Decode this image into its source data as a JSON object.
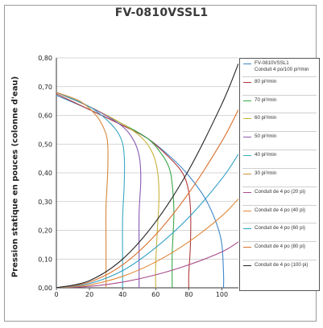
{
  "chart_data": {
    "type": "line",
    "title": "FV-0810VSSL1",
    "ylabel": "Pression statique en pouces (colonne d'eau)",
    "xlabel": "",
    "xlim": [
      0,
      110
    ],
    "ylim": [
      0,
      0.8
    ],
    "x_ticks": [
      "0",
      "20",
      "40",
      "60",
      "80",
      "100"
    ],
    "y_ticks": [
      "0,00",
      "0,10",
      "0,20",
      "0,30",
      "0,40",
      "0,50",
      "0,60",
      "0,70",
      "0,80"
    ],
    "grid": "horizontal",
    "legend_position": "right",
    "series": [
      {
        "name": "FV-0810VSSL1",
        "name_line2": "Conduit 4 po/100 pi³/min",
        "color": "#3f87c9",
        "points": [
          [
            0,
            0.67
          ],
          [
            20,
            0.62
          ],
          [
            40,
            0.565
          ],
          [
            55,
            0.52
          ],
          [
            70,
            0.45
          ],
          [
            80,
            0.39
          ],
          [
            90,
            0.31
          ],
          [
            97,
            0.22
          ],
          [
            100,
            0.15
          ],
          [
            101,
            0.05
          ],
          [
            101,
            0
          ]
        ]
      },
      {
        "name": "80 pi³/min",
        "color": "#b03a3a",
        "points": [
          [
            0,
            0.675
          ],
          [
            20,
            0.62
          ],
          [
            40,
            0.565
          ],
          [
            55,
            0.52
          ],
          [
            67,
            0.46
          ],
          [
            75,
            0.41
          ],
          [
            79,
            0.36
          ],
          [
            81,
            0.28
          ],
          [
            81,
            0.15
          ],
          [
            80,
            0.05
          ],
          [
            80,
            0
          ]
        ]
      },
      {
        "name": "70 pi³/min",
        "color": "#3aa84a",
        "points": [
          [
            0,
            0.68
          ],
          [
            20,
            0.63
          ],
          [
            40,
            0.57
          ],
          [
            55,
            0.52
          ],
          [
            63,
            0.47
          ],
          [
            68,
            0.42
          ],
          [
            70,
            0.36
          ],
          [
            71,
            0.26
          ],
          [
            70,
            0.12
          ],
          [
            70,
            0
          ]
        ]
      },
      {
        "name": "60 pi³/min",
        "color": "#c9b23a",
        "points": [
          [
            0,
            0.68
          ],
          [
            20,
            0.63
          ],
          [
            40,
            0.57
          ],
          [
            52,
            0.52
          ],
          [
            58,
            0.47
          ],
          [
            61,
            0.41
          ],
          [
            62,
            0.32
          ],
          [
            61,
            0.2
          ],
          [
            60,
            0.08
          ],
          [
            60,
            0
          ]
        ]
      },
      {
        "name": "50 pi³/min",
        "color": "#8a5ab0",
        "points": [
          [
            0,
            0.68
          ],
          [
            20,
            0.63
          ],
          [
            38,
            0.57
          ],
          [
            46,
            0.52
          ],
          [
            50,
            0.46
          ],
          [
            51,
            0.38
          ],
          [
            50,
            0.26
          ],
          [
            50,
            0.12
          ],
          [
            50,
            0
          ]
        ]
      },
      {
        "name": "40 pi³/min",
        "color": "#3aa9c2",
        "points": [
          [
            0,
            0.68
          ],
          [
            20,
            0.63
          ],
          [
            33,
            0.57
          ],
          [
            39,
            0.52
          ],
          [
            41,
            0.46
          ],
          [
            41,
            0.36
          ],
          [
            40,
            0.24
          ],
          [
            40,
            0.1
          ],
          [
            40,
            0
          ]
        ]
      },
      {
        "name": "30 pi³/min",
        "color": "#d48a3a",
        "points": [
          [
            0,
            0.68
          ],
          [
            14,
            0.65
          ],
          [
            24,
            0.6
          ],
          [
            29,
            0.55
          ],
          [
            31,
            0.5
          ],
          [
            31,
            0.4
          ],
          [
            30,
            0.28
          ],
          [
            30,
            0.14
          ],
          [
            30,
            0
          ]
        ]
      },
      {
        "name": "Conduit de 4 po (20 pi)",
        "color": "#a84a8a",
        "points": [
          [
            0,
            0
          ],
          [
            20,
            0.005
          ],
          [
            40,
            0.02
          ],
          [
            60,
            0.045
          ],
          [
            80,
            0.08
          ],
          [
            100,
            0.125
          ],
          [
            110,
            0.16
          ]
        ]
      },
      {
        "name": "Conduit de 4 po (40 pi)",
        "color": "#e0883a",
        "points": [
          [
            0,
            0
          ],
          [
            20,
            0.01
          ],
          [
            40,
            0.04
          ],
          [
            60,
            0.09
          ],
          [
            80,
            0.16
          ],
          [
            100,
            0.25
          ],
          [
            110,
            0.31
          ]
        ]
      },
      {
        "name": "Conduit de 4 po (60 pi)",
        "color": "#2f9fc4",
        "points": [
          [
            0,
            0
          ],
          [
            20,
            0.015
          ],
          [
            40,
            0.06
          ],
          [
            60,
            0.14
          ],
          [
            80,
            0.245
          ],
          [
            100,
            0.38
          ],
          [
            110,
            0.465
          ]
        ]
      },
      {
        "name": "Conduit de 4 po (80 pi)",
        "color": "#d9702f",
        "points": [
          [
            0,
            0
          ],
          [
            20,
            0.02
          ],
          [
            40,
            0.08
          ],
          [
            60,
            0.185
          ],
          [
            80,
            0.33
          ],
          [
            100,
            0.51
          ],
          [
            110,
            0.62
          ]
        ]
      },
      {
        "name": "Conduit de 4 po (100 pi)",
        "color": "#222222",
        "points": [
          [
            0,
            0
          ],
          [
            20,
            0.025
          ],
          [
            40,
            0.1
          ],
          [
            60,
            0.23
          ],
          [
            80,
            0.41
          ],
          [
            100,
            0.64
          ],
          [
            110,
            0.78
          ]
        ]
      }
    ]
  }
}
